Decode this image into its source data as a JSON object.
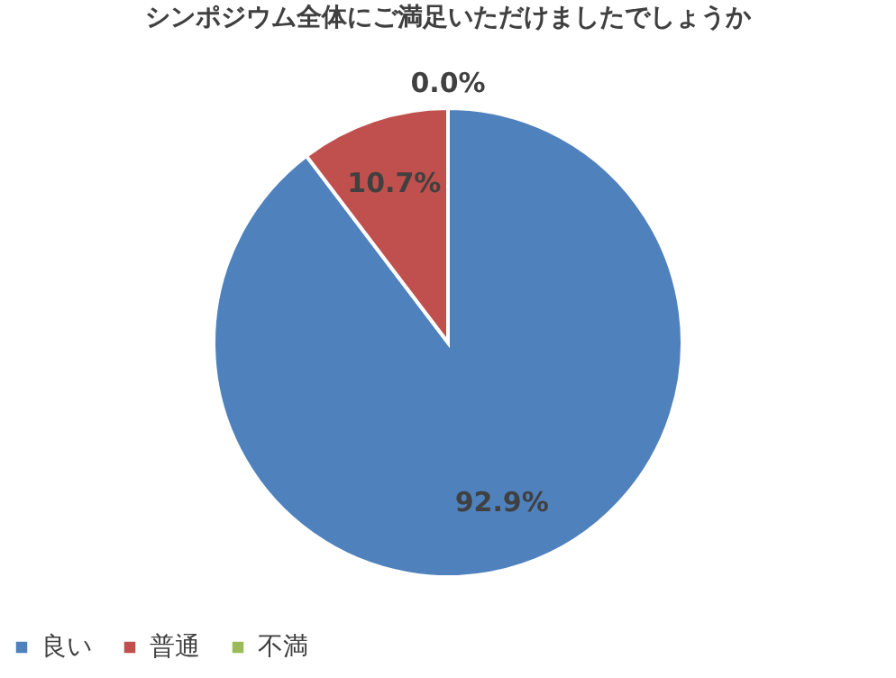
{
  "chart_data": {
    "type": "pie",
    "title": "シンポジウム全体にご満足いただけましたでしょうか",
    "categories": [
      "良い",
      "普通",
      "不満"
    ],
    "values": [
      92.9,
      10.7,
      0.0
    ],
    "colors": [
      "#4f81bd",
      "#c0504d",
      "#9bbb59"
    ],
    "value_labels": [
      "92.9%",
      "10.7%",
      "0.0%"
    ],
    "legend": "bottom"
  }
}
